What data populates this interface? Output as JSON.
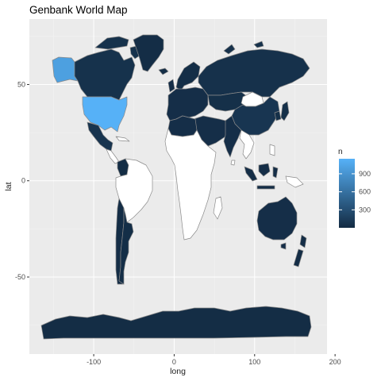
{
  "chart_data": {
    "type": "choropleth map",
    "title": "Genbank World Map",
    "xlabel": "long",
    "ylabel": "lat",
    "xlim": [
      -180,
      190
    ],
    "ylim": [
      -90,
      84
    ],
    "x_ticks": [
      -100,
      0,
      100,
      200
    ],
    "y_ticks": [
      50,
      0,
      -50
    ],
    "x_tick_labels": [
      "-100",
      "0",
      "100",
      "200"
    ],
    "y_tick_labels": [
      "50",
      "0",
      "-50"
    ],
    "grid": true,
    "legend": {
      "title": "n",
      "placement": "right",
      "labels": [
        "900",
        "600",
        "300"
      ],
      "breaks": [
        900,
        600,
        300
      ],
      "range": [
        1,
        1150
      ],
      "color_low": "#132B43",
      "color_high": "#56B1F7",
      "na_color": "#ffffff"
    },
    "colors": {
      "panel_background": "#ebebeb",
      "grid_line": "#ffffff",
      "country_border": "#8a8a8a"
    },
    "regions": [
      {
        "name": "United States",
        "n": 1150
      },
      {
        "name": "Alaska",
        "n": 1000
      },
      {
        "name": "Canada",
        "n": 60
      },
      {
        "name": "Greenland",
        "n": 20
      },
      {
        "name": "Mexico",
        "n": 80
      },
      {
        "name": "Colombia",
        "n": 15
      },
      {
        "name": "Chile",
        "n": 20
      },
      {
        "name": "Argentina",
        "n": 25
      },
      {
        "name": "Europe",
        "n": 30
      },
      {
        "name": "Scandinavia",
        "n": 25
      },
      {
        "name": "Russia",
        "n": 50
      },
      {
        "name": "Kazakhstan",
        "n": 40
      },
      {
        "name": "Mongolia",
        "n": null
      },
      {
        "name": "China",
        "n": 90
      },
      {
        "name": "Japan",
        "n": 40
      },
      {
        "name": "India",
        "n": 30
      },
      {
        "name": "Middle East",
        "n": 30
      },
      {
        "name": "North Africa",
        "n": 30
      },
      {
        "name": "Indonesia",
        "n": 20
      },
      {
        "name": "Australia",
        "n": 30
      },
      {
        "name": "New Zealand",
        "n": 20
      },
      {
        "name": "Antarctica",
        "n": 15
      },
      {
        "name": "Iceland",
        "n": 20
      },
      {
        "name": "United Kingdom",
        "n": 30
      },
      {
        "name": "Madagascar",
        "n": null
      },
      {
        "name": "Sub-Saharan Africa",
        "n": null
      },
      {
        "name": "Brazil",
        "n": null
      },
      {
        "name": "Southeast Asia",
        "n": null
      },
      {
        "name": "Philippines",
        "n": null
      },
      {
        "name": "New Guinea",
        "n": null
      }
    ]
  }
}
